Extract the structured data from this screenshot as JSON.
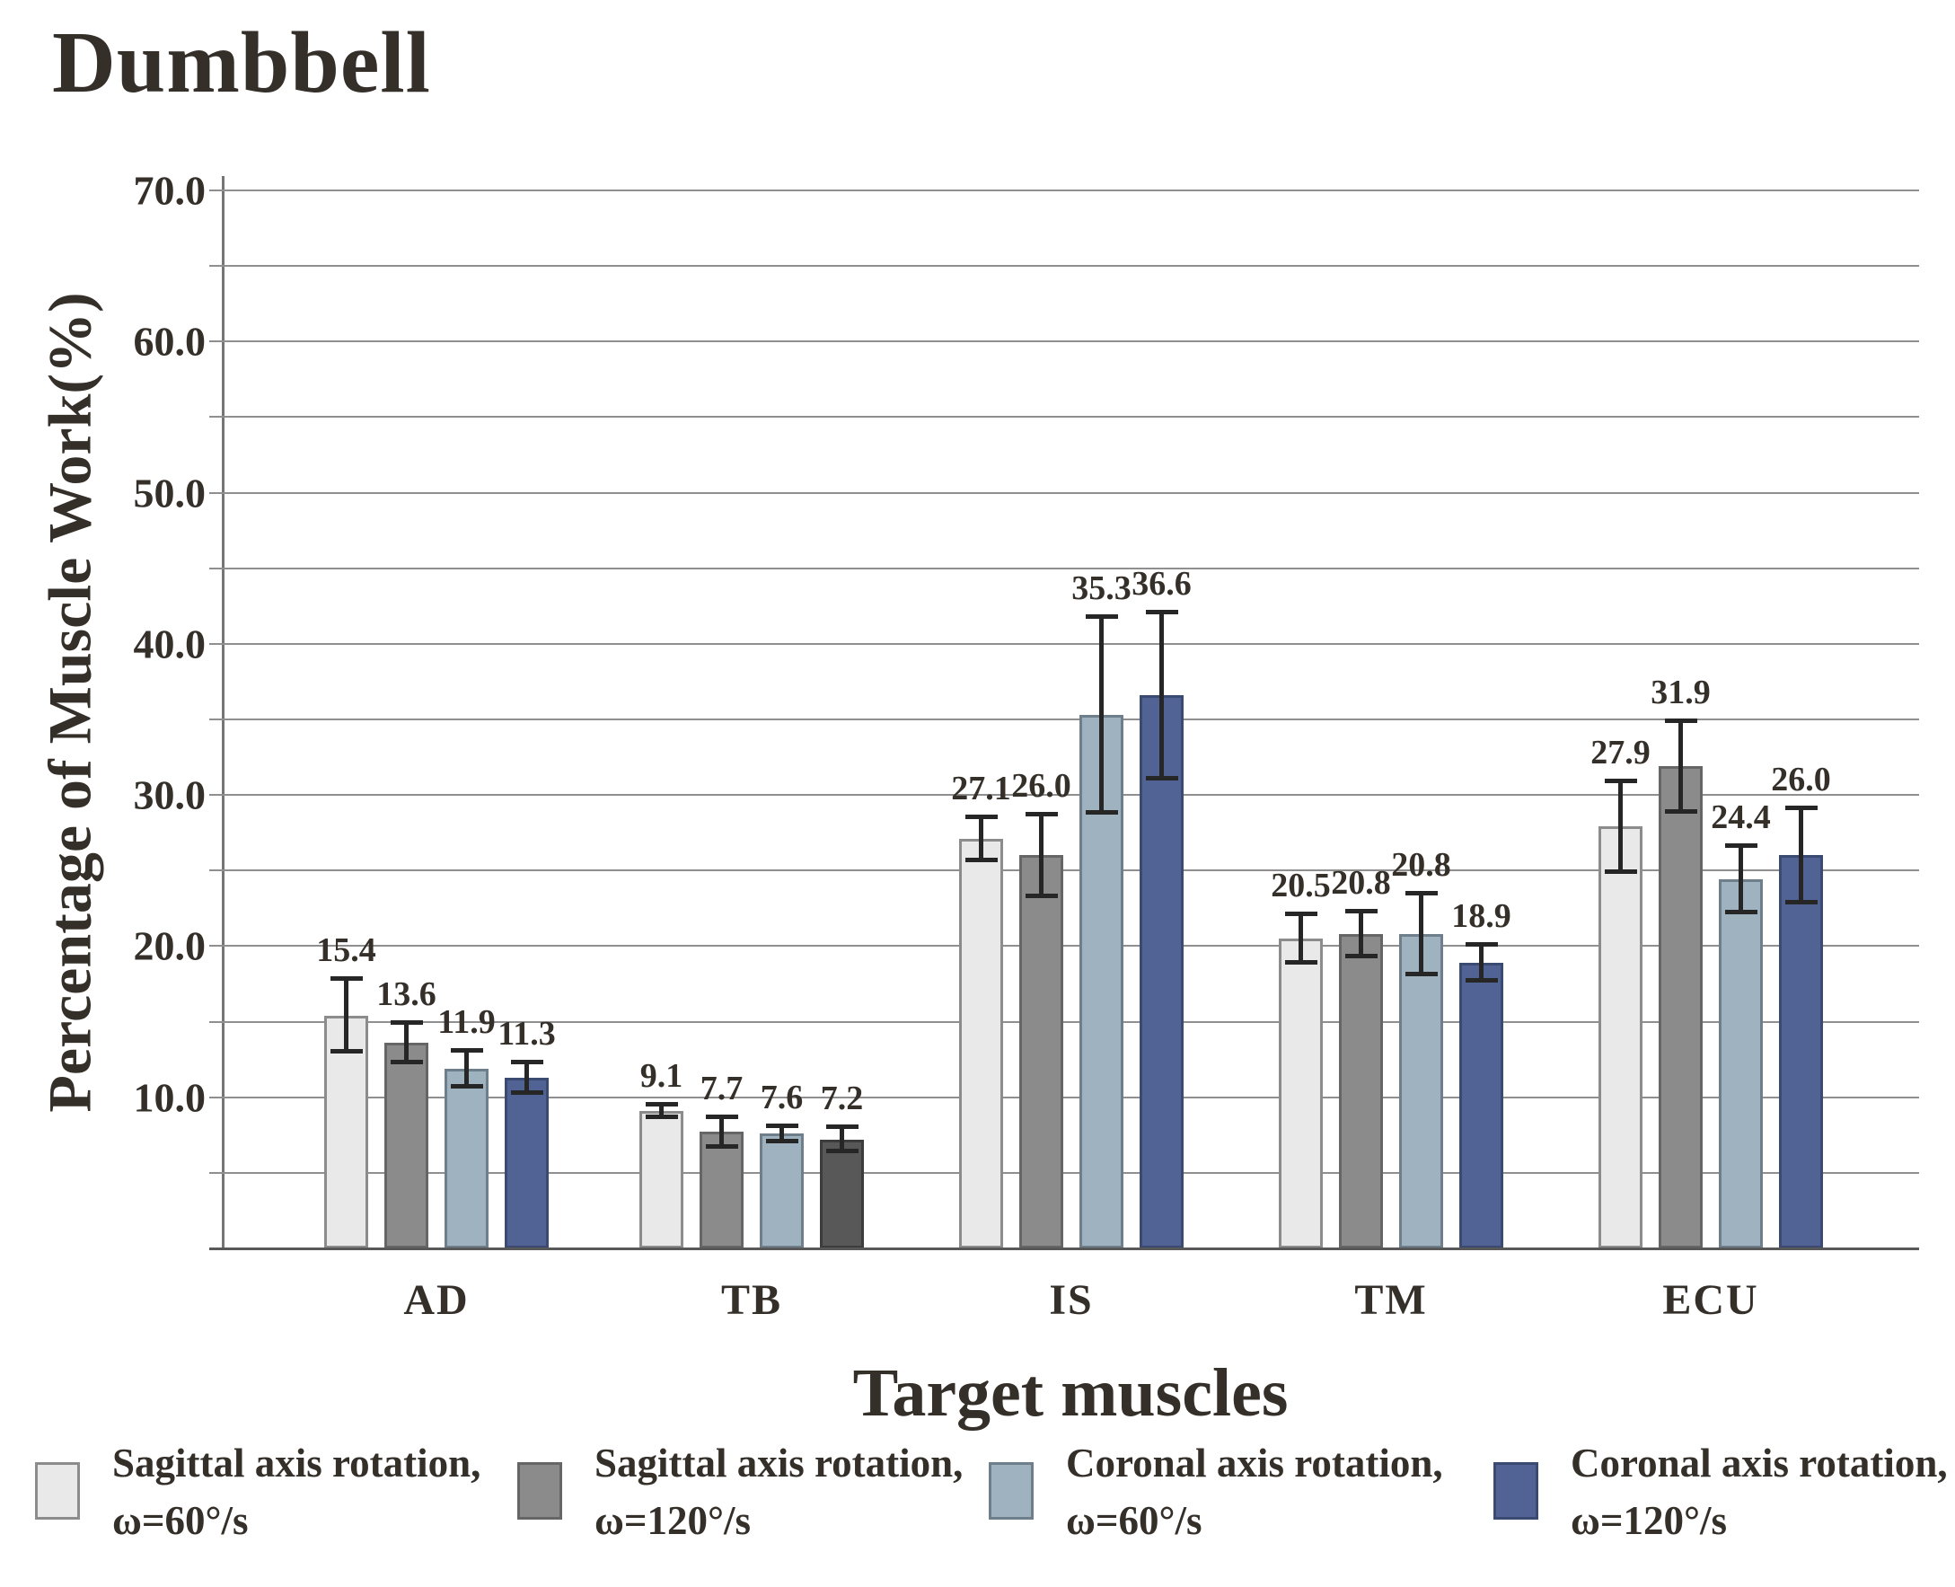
{
  "title": "Dumbbell",
  "chart_data": {
    "type": "bar",
    "title": "Dumbbell",
    "xlabel": "Target muscles",
    "ylabel": "Percentage of Muscle Work(%)",
    "ylim": [
      0,
      70
    ],
    "ytick_step": 10,
    "grid_step": 5,
    "grid_on": true,
    "ytick_labels": [
      "10.0",
      "20.0",
      "30.0",
      "40.0",
      "50.0",
      "60.0",
      "70.0"
    ],
    "categories": [
      "AD",
      "TB",
      "IS",
      "TM",
      "ECU"
    ],
    "series": [
      {
        "name": "Sagittal axis rotation, ω=60°/s",
        "legend_line1": "Sagittal axis rotation,",
        "legend_line2": "ω=60°/s",
        "color": "#e9e9e9",
        "border": "#8c8c8c",
        "values": [
          15.4,
          9.1,
          27.1,
          20.5,
          27.9
        ],
        "errors": [
          2.4,
          0.4,
          1.4,
          1.6,
          3.0
        ]
      },
      {
        "name": "Sagittal axis rotation, ω=120°/s",
        "legend_line1": "Sagittal axis rotation,",
        "legend_line2": "ω=120°/s",
        "color": "#8b8b8b",
        "border": "#666666",
        "values": [
          13.6,
          7.7,
          26.0,
          20.8,
          31.9
        ],
        "errors": [
          1.3,
          1.0,
          2.7,
          1.5,
          3.0
        ]
      },
      {
        "name": "Coronal axis rotation, ω=60°/s",
        "legend_line1": "Coronal axis rotation,",
        "legend_line2": "ω=60°/s",
        "color": "#9eb2bf",
        "border": "#6e7f8b",
        "values": [
          11.9,
          7.6,
          35.3,
          20.8,
          24.4
        ],
        "errors": [
          1.2,
          0.5,
          6.5,
          2.7,
          2.2
        ]
      },
      {
        "name": "Coronal axis rotation, ω=120°/s",
        "legend_line1": "Coronal axis rotation,",
        "legend_line2": "ω=120°/s",
        "color": "#506394",
        "border": "#3a4a70",
        "values": [
          11.3,
          7.2,
          36.6,
          18.9,
          26.0
        ],
        "errors": [
          1.0,
          0.8,
          5.5,
          1.2,
          3.1
        ]
      }
    ],
    "color_overrides": [
      {
        "series_index": 3,
        "category_index": 1,
        "color": "#585858",
        "border": "#3c3c3c"
      }
    ],
    "value_labels_shown": true,
    "error_bars_shown": true,
    "legend_position": "bottom"
  }
}
